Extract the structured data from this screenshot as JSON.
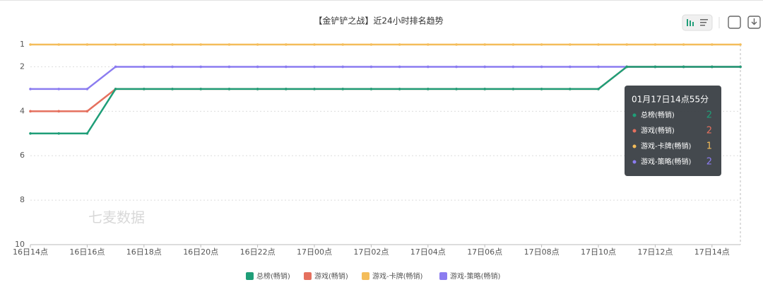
{
  "chart_data": {
    "type": "line",
    "title": "【金铲铲之战】近24小时排名趋势",
    "watermark": "七麦数据",
    "tooltip_title": "01月17日14点55分",
    "categories": [
      "16日14点",
      null,
      "16日16点",
      null,
      "16日18点",
      null,
      "16日20点",
      null,
      "16日22点",
      null,
      "17日00点",
      null,
      "17日02点",
      null,
      "17日04点",
      null,
      "17日06点",
      null,
      "17日08点",
      null,
      "17日10点",
      null,
      "17日12点",
      null,
      "17日14点",
      null
    ],
    "ylim": [
      1,
      10
    ],
    "inverse": true,
    "yticks": [
      1,
      2,
      4,
      6,
      8,
      10
    ],
    "grid": true,
    "series": [
      {
        "name": "总榜(畅销)",
        "color": "#1f9e78",
        "values": [
          5,
          5,
          5,
          3,
          3,
          3,
          3,
          3,
          3,
          3,
          3,
          3,
          3,
          3,
          3,
          3,
          3,
          3,
          3,
          3,
          3,
          2,
          2,
          2,
          2,
          2
        ]
      },
      {
        "name": "游戏(畅销)",
        "color": "#e5705e",
        "values": [
          4,
          4,
          4,
          3,
          3,
          3,
          3,
          3,
          3,
          3,
          3,
          3,
          3,
          3,
          3,
          3,
          3,
          3,
          3,
          3,
          3,
          2,
          2,
          2,
          2,
          2
        ]
      },
      {
        "name": "游戏-卡牌(畅销)",
        "color": "#f4bd5a",
        "values": [
          1,
          1,
          1,
          1,
          1,
          1,
          1,
          1,
          1,
          1,
          1,
          1,
          1,
          1,
          1,
          1,
          1,
          1,
          1,
          1,
          1,
          1,
          1,
          1,
          1,
          1
        ]
      },
      {
        "name": "游戏-策略(畅销)",
        "color": "#8b7cf0",
        "values": [
          3,
          3,
          3,
          2,
          2,
          2,
          2,
          2,
          2,
          2,
          2,
          2,
          2,
          2,
          2,
          2,
          2,
          2,
          2,
          2,
          2,
          2,
          2,
          2,
          2,
          2
        ]
      }
    ]
  }
}
